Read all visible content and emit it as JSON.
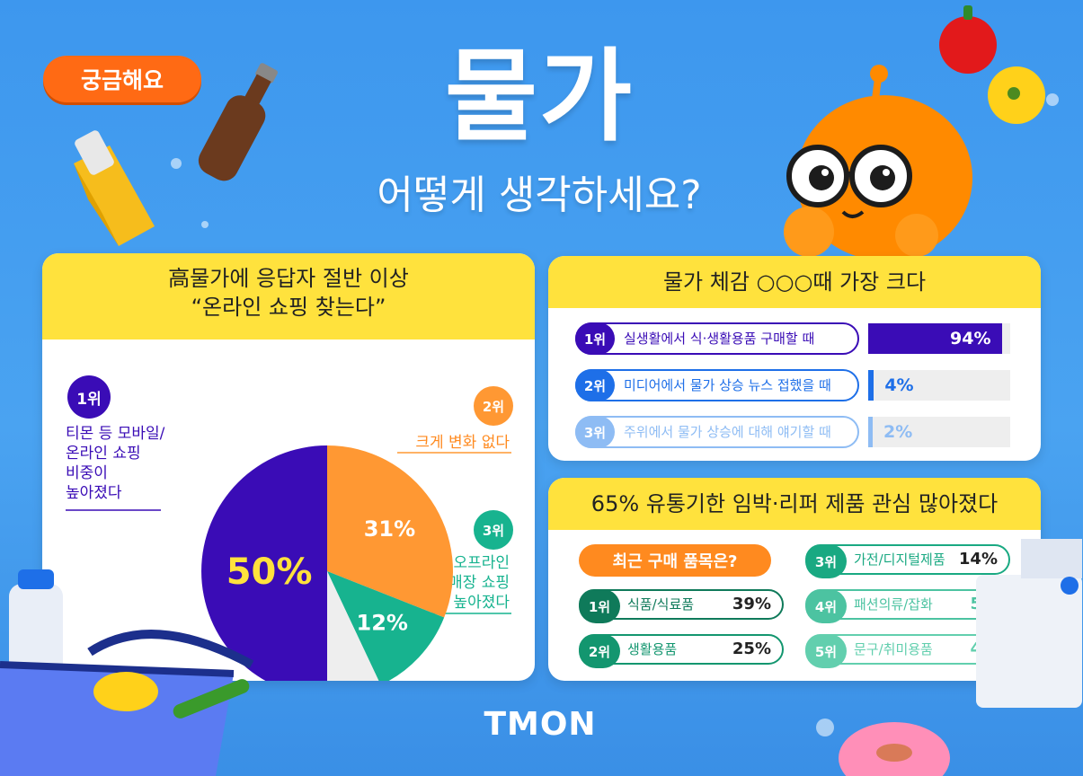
{
  "badge": "궁금해요",
  "title": "물가",
  "subtitle": "어떻게 생각하세요?",
  "brand": "TMON",
  "colors": {
    "background": "#3d97ee",
    "header_yellow": "#ffe23d",
    "purple": "#3a0cb6",
    "orange": "#ff9833",
    "teal": "#17b38f",
    "blue": "#1e6fe8",
    "light_blue": "#8ebcf4"
  },
  "chart_data": [
    {
      "type": "pie",
      "title": "高물가에 응답자 절반 이상",
      "subtitle": "“온라인 쇼핑 찾는다”",
      "slices": [
        {
          "rank": "1위",
          "label_lines": [
            "티몬 등 모바일/",
            "온라인 쇼핑",
            "비중이",
            "높아졌다"
          ],
          "value": 50,
          "display": "50%",
          "color": "#3a0cb6"
        },
        {
          "rank": "2위",
          "label_lines": [
            "크게 변화 없다"
          ],
          "value": 31,
          "display": "31%",
          "color": "#ff9833"
        },
        {
          "rank": "3위",
          "label_lines": [
            "오프라인",
            "할인매장 쇼핑",
            "비중 높아졌다"
          ],
          "value": 12,
          "display": "12%",
          "color": "#17b38f"
        },
        {
          "rank": "",
          "label_lines": [],
          "value": 7,
          "display": "",
          "color": "#eeeeee"
        }
      ]
    },
    {
      "type": "bar",
      "title": "물가 체감 ○○○때 가장 크다",
      "categories": [
        "실생활에서 식·생활용품 구매할 때",
        "미디어에서 물가 상승 뉴스 접했을 때",
        "주위에서 물가 상승에 대해 얘기할 때"
      ],
      "ranks": [
        "1위",
        "2위",
        "3위"
      ],
      "values": [
        94,
        4,
        2
      ],
      "displays": [
        "94%",
        "4%",
        "2%"
      ],
      "colors": [
        "#3a0cb6",
        "#1e6fe8",
        "#8ebcf4"
      ],
      "ylim": [
        0,
        100
      ]
    },
    {
      "type": "table",
      "title": "65% 유통기한 임박·리퍼 제품 관심 많아졌다",
      "tag": "최근 구매 품목은?",
      "rows": [
        {
          "rank": "1위",
          "label": "식품/식료품",
          "value": 39,
          "display": "39%",
          "color": "#0f7a5a"
        },
        {
          "rank": "2위",
          "label": "생활용품",
          "value": 25,
          "display": "25%",
          "color": "#13966f"
        },
        {
          "rank": "3위",
          "label": "가전/디지털제품",
          "value": 14,
          "display": "14%",
          "color": "#19a982"
        },
        {
          "rank": "4위",
          "label": "패션의류/잡화",
          "value": 5,
          "display": "5%",
          "color": "#4cc3a1"
        },
        {
          "rank": "5위",
          "label": "문구/취미용품",
          "value": 4,
          "display": "4%",
          "color": "#62cfae"
        }
      ]
    }
  ]
}
